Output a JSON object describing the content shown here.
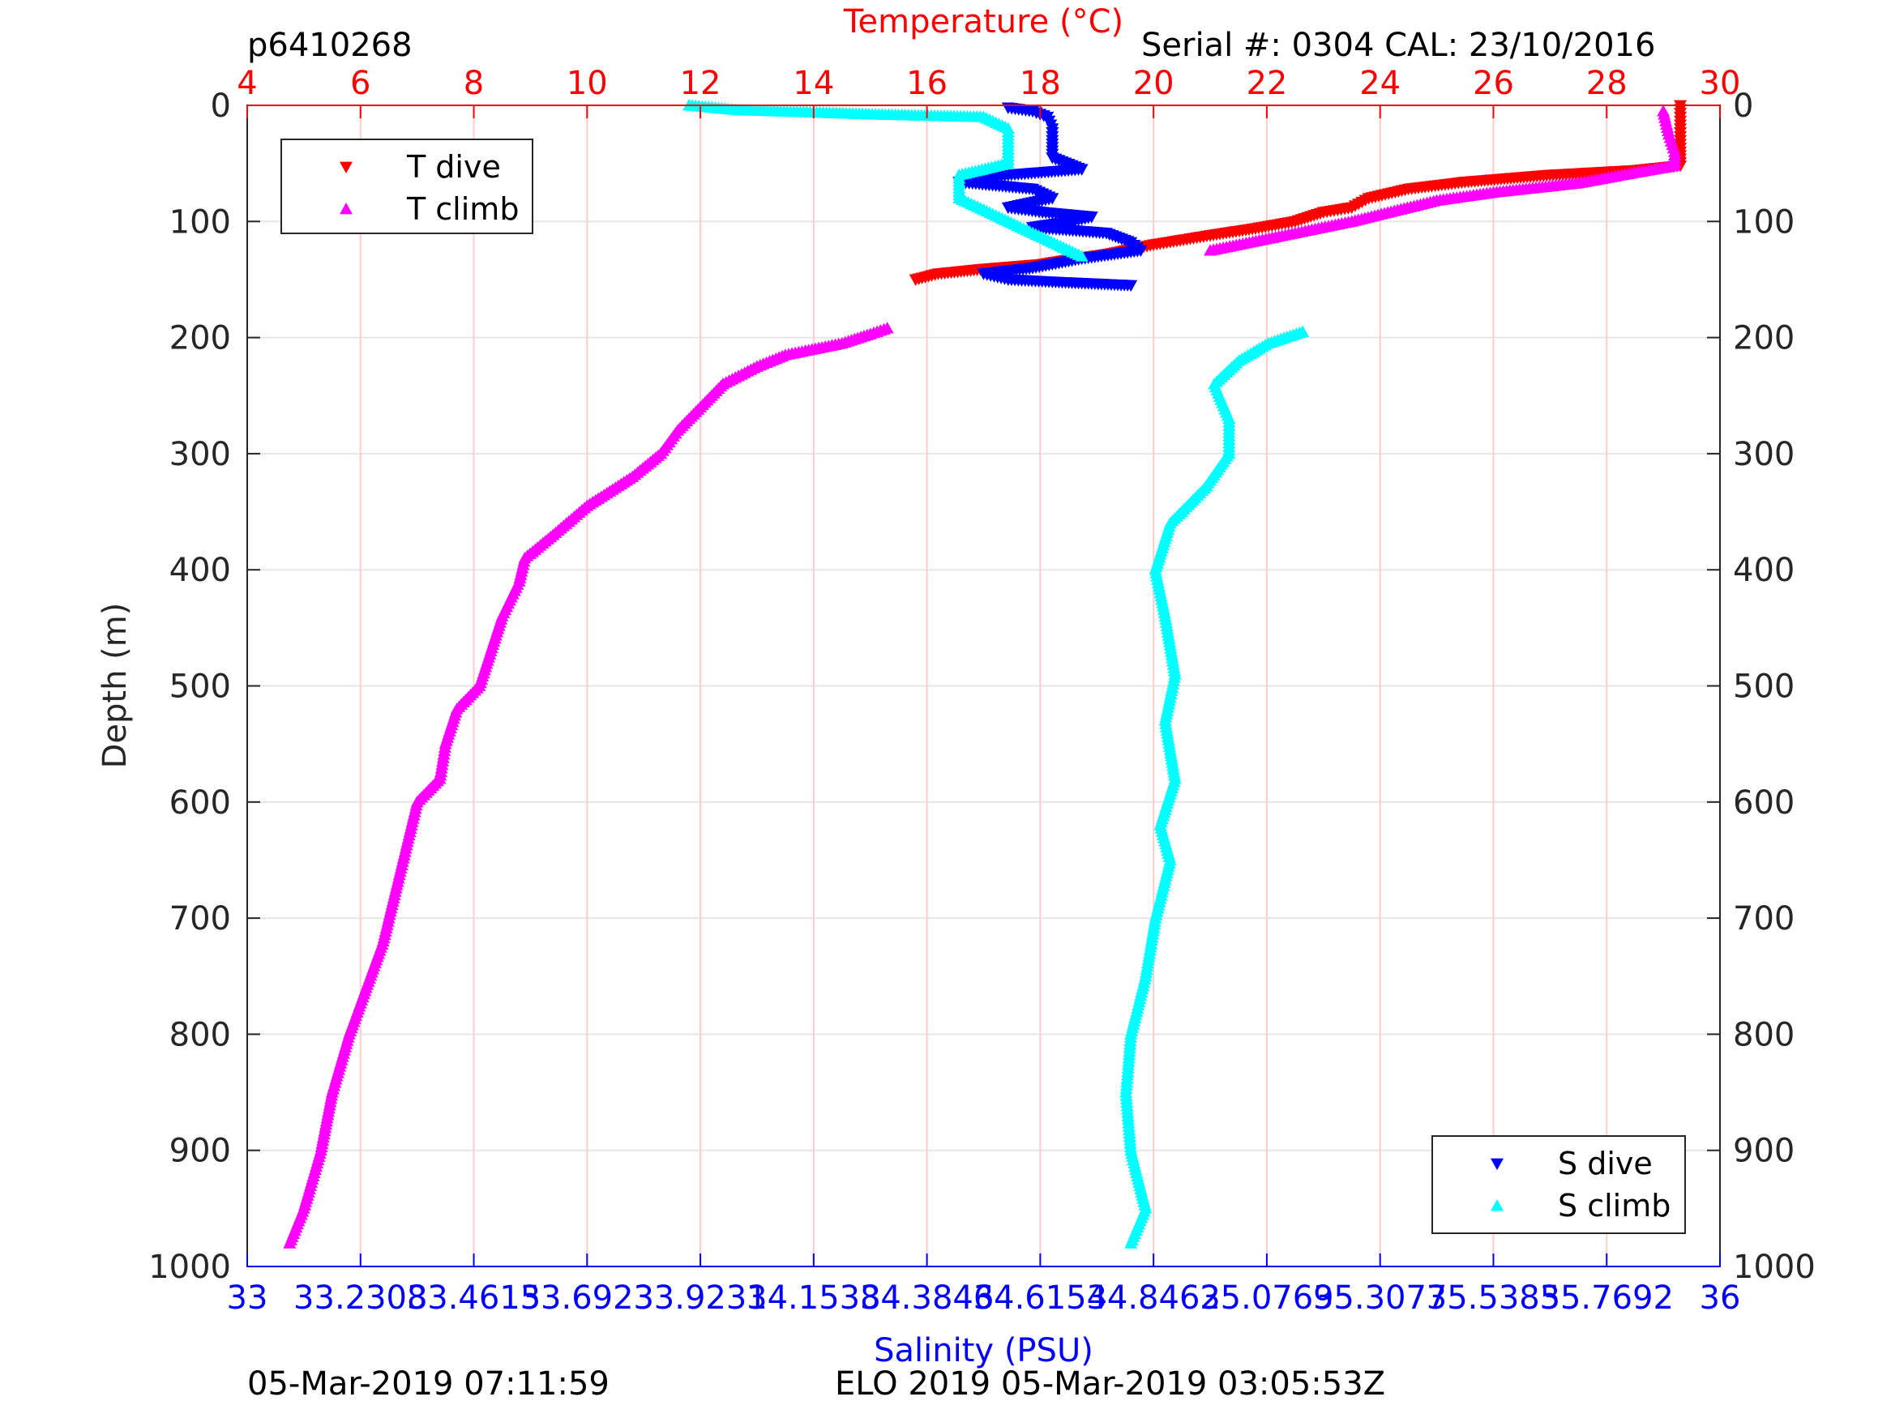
{
  "header": {
    "plot_id": "p6410268",
    "serial": "Serial #: 0304  CAL: 23/10/2016"
  },
  "footer": {
    "left": "05-Mar-2019 07:11:59",
    "center": "ELO 2019 05-Mar-2019 03:05:53Z"
  },
  "colors": {
    "temperature_axis": "#ff0000",
    "salinity_axis": "#0000ff",
    "t_dive": "#ff0000",
    "t_climb": "#ff00ff",
    "s_dive": "#0000ff",
    "s_climb": "#00ffff",
    "grid": "#e6e6e6",
    "temp_grid": "#ffcccc"
  },
  "chart_data": {
    "type": "scatter",
    "y_axis": {
      "label": "Depth (m)",
      "range": [
        0,
        1000
      ],
      "reversed": true,
      "ticks": [
        "0",
        "100",
        "200",
        "300",
        "400",
        "500",
        "600",
        "700",
        "800",
        "900",
        "1000"
      ]
    },
    "top_axis": {
      "label": "Temperature (°C)",
      "range": [
        4,
        30
      ],
      "ticks": [
        "4",
        "6",
        "8",
        "10",
        "12",
        "14",
        "16",
        "18",
        "20",
        "22",
        "24",
        "26",
        "28",
        "30"
      ]
    },
    "bottom_axis": {
      "label": "Salinity (PSU)",
      "range": [
        33,
        36
      ],
      "ticks": [
        "33",
        "33.2308",
        "33.4615",
        "33.6923",
        "33.9231",
        "34.1538",
        "34.3846",
        "34.6154",
        "34.8462",
        "35.0769",
        "35.3077",
        "35.5385",
        "35.7692",
        "36"
      ]
    },
    "grid": true,
    "legend_temperature": {
      "placement": "top-left",
      "entries": [
        "T dive",
        "T climb"
      ]
    },
    "legend_salinity": {
      "placement": "bottom-right",
      "entries": [
        "S dive",
        "S climb"
      ]
    },
    "series": [
      {
        "name": "T dive",
        "variable": "temperature",
        "marker": "triangle-down",
        "color": "#ff0000",
        "points": [
          [
            29.3,
            0
          ],
          [
            29.3,
            10
          ],
          [
            29.3,
            20
          ],
          [
            29.3,
            30
          ],
          [
            29.3,
            40
          ],
          [
            29.3,
            52
          ],
          [
            28.5,
            56
          ],
          [
            27.0,
            60
          ],
          [
            25.5,
            66
          ],
          [
            24.5,
            72
          ],
          [
            23.8,
            80
          ],
          [
            23.5,
            88
          ],
          [
            23.0,
            92
          ],
          [
            22.5,
            100
          ],
          [
            21.8,
            106
          ],
          [
            21.0,
            112
          ],
          [
            20.0,
            120
          ],
          [
            19.2,
            128
          ],
          [
            18.5,
            133
          ],
          [
            18.0,
            137
          ],
          [
            17.0,
            141
          ],
          [
            16.2,
            145
          ],
          [
            15.8,
            150
          ]
        ]
      },
      {
        "name": "T climb",
        "variable": "temperature",
        "marker": "triangle-up",
        "color": "#ff00ff",
        "points": [
          [
            4.75,
            980
          ],
          [
            5.0,
            950
          ],
          [
            5.3,
            900
          ],
          [
            5.5,
            850
          ],
          [
            5.8,
            800
          ],
          [
            6.1,
            760
          ],
          [
            6.4,
            720
          ],
          [
            6.6,
            680
          ],
          [
            6.8,
            640
          ],
          [
            7.0,
            600
          ],
          [
            7.4,
            580
          ],
          [
            7.5,
            550
          ],
          [
            7.7,
            520
          ],
          [
            8.1,
            500
          ],
          [
            8.3,
            470
          ],
          [
            8.5,
            440
          ],
          [
            8.8,
            410
          ],
          [
            8.9,
            390
          ],
          [
            9.4,
            370
          ],
          [
            10.0,
            345
          ],
          [
            10.8,
            320
          ],
          [
            11.3,
            300
          ],
          [
            11.6,
            280
          ],
          [
            12.0,
            260
          ],
          [
            12.4,
            240
          ],
          [
            13.0,
            225
          ],
          [
            13.5,
            215
          ],
          [
            14.5,
            205
          ],
          [
            15.0,
            197
          ],
          [
            15.3,
            192
          ],
          [
            21.0,
            125
          ],
          [
            22.5,
            110
          ],
          [
            23.5,
            100
          ],
          [
            25.0,
            82
          ],
          [
            26.0,
            75
          ],
          [
            27.5,
            67
          ],
          [
            28.5,
            58
          ],
          [
            29.2,
            52
          ],
          [
            29.2,
            40
          ],
          [
            29.1,
            25
          ],
          [
            29.0,
            5
          ]
        ]
      },
      {
        "name": "S dive",
        "variable": "salinity",
        "marker": "triangle-down",
        "color": "#0000ff",
        "points": [
          [
            34.55,
            2
          ],
          [
            34.6,
            5
          ],
          [
            34.63,
            10
          ],
          [
            34.64,
            20
          ],
          [
            34.64,
            30
          ],
          [
            34.64,
            45
          ],
          [
            34.7,
            55
          ],
          [
            34.55,
            60
          ],
          [
            34.45,
            66
          ],
          [
            34.6,
            72
          ],
          [
            34.64,
            80
          ],
          [
            34.55,
            88
          ],
          [
            34.62,
            92
          ],
          [
            34.72,
            96
          ],
          [
            34.68,
            100
          ],
          [
            34.6,
            105
          ],
          [
            34.75,
            110
          ],
          [
            34.8,
            118
          ],
          [
            34.82,
            125
          ],
          [
            34.7,
            132
          ],
          [
            34.6,
            140
          ],
          [
            34.5,
            145
          ],
          [
            34.55,
            150
          ],
          [
            34.64,
            152
          ],
          [
            34.8,
            155
          ]
        ]
      },
      {
        "name": "S climb",
        "variable": "salinity",
        "marker": "triangle-up",
        "color": "#00ffff",
        "points": [
          [
            34.8,
            980
          ],
          [
            34.83,
            950
          ],
          [
            34.8,
            900
          ],
          [
            34.79,
            850
          ],
          [
            34.8,
            800
          ],
          [
            34.83,
            750
          ],
          [
            34.85,
            700
          ],
          [
            34.88,
            650
          ],
          [
            34.86,
            620
          ],
          [
            34.89,
            580
          ],
          [
            34.87,
            530
          ],
          [
            34.89,
            490
          ],
          [
            34.87,
            440
          ],
          [
            34.85,
            400
          ],
          [
            34.88,
            360
          ],
          [
            34.95,
            330
          ],
          [
            35.0,
            300
          ],
          [
            35.0,
            270
          ],
          [
            34.97,
            240
          ],
          [
            35.02,
            220
          ],
          [
            35.08,
            205
          ],
          [
            35.15,
            195
          ],
          [
            34.7,
            130
          ],
          [
            34.6,
            110
          ],
          [
            34.55,
            100
          ],
          [
            34.45,
            80
          ],
          [
            34.45,
            60
          ],
          [
            34.55,
            50
          ],
          [
            34.55,
            20
          ],
          [
            34.5,
            10
          ],
          [
            34.3,
            8
          ],
          [
            34.0,
            4
          ],
          [
            33.9,
            0
          ]
        ]
      }
    ]
  }
}
